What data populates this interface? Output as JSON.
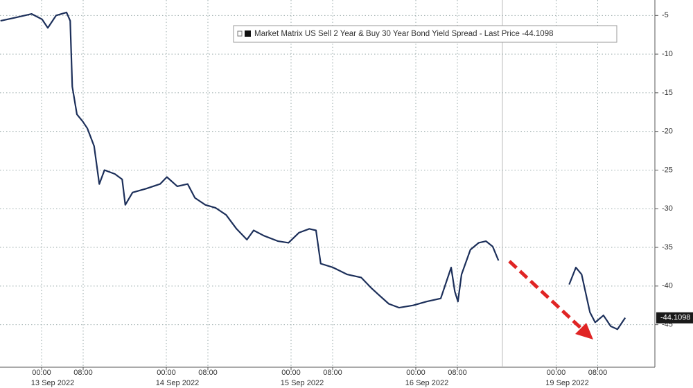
{
  "chart_data": {
    "type": "line",
    "series": [
      {
        "name": "Market Matrix US Sell 2 Year & Buy 30 Year Bond Yield Spread - Last Price -44.1098",
        "color": "#1c2f5a",
        "x": [
          -7.9,
          -5.2,
          -1.9,
          0.1,
          1.2,
          2.8,
          4.8,
          5.5,
          5.9,
          6.8,
          7.9,
          8.8,
          10.1,
          11.1,
          12.1,
          14.1,
          15.5,
          16.1,
          17.5,
          20.1,
          22.8,
          24.1,
          26.1,
          28.1,
          29.5,
          31.5,
          33.5,
          35.5,
          37.5,
          39.5,
          40.8,
          42.8,
          45.5,
          47.5,
          49.5,
          51.5,
          52.8,
          53.7,
          56.1,
          58.8,
          61.5,
          63.5,
          64.8,
          66.8,
          68.8,
          71.5,
          74.1,
          76.8,
          78.8,
          79.5,
          80.1,
          80.8,
          82.5,
          84.1,
          85.5,
          86.8,
          87.9,
          95,
          101.5,
          102.8,
          103.9,
          105.5,
          106.5,
          108.1,
          109.5,
          110.8,
          112.3
        ],
        "values": [
          -5.7,
          -5.3,
          -4.8,
          -5.5,
          -6.6,
          -5,
          -4.6,
          -5.7,
          -14.2,
          -17.8,
          -18.7,
          -19.6,
          -21.9,
          -26.8,
          -25,
          -25.5,
          -26.2,
          -29.5,
          -27.9,
          -27.4,
          -26.8,
          -25.9,
          -27.1,
          -26.8,
          -28.6,
          -29.5,
          -29.9,
          -30.8,
          -32.6,
          -34,
          -32.8,
          -33.5,
          -34.2,
          -34.4,
          -33.1,
          -32.6,
          -32.8,
          -37.1,
          -37.6,
          -38.5,
          -38.9,
          -40.3,
          -41.1,
          -42.3,
          -42.8,
          -42.5,
          -42,
          -41.6,
          -37.6,
          -40.7,
          -42,
          -38.5,
          -35.3,
          -34.4,
          -34.2,
          -34.9,
          -36.7,
          null,
          -39.8,
          -37.6,
          -38.5,
          -43.4,
          -44.7,
          -43.8,
          -45.2,
          -45.6,
          -44.1
        ]
      }
    ],
    "last_price": {
      "value": -44.1098,
      "label": "-44.1098"
    },
    "xlim": [
      -8,
      118
    ],
    "xticks": [
      {
        "value": 0,
        "label": "00:00"
      },
      {
        "value": 8,
        "label": "08:00"
      },
      {
        "value": 24,
        "label": "00:00"
      },
      {
        "value": 32,
        "label": "08:00"
      },
      {
        "value": 48,
        "label": "00:00"
      },
      {
        "value": 56,
        "label": "08:00"
      },
      {
        "value": 72,
        "label": "00:00"
      },
      {
        "value": 80,
        "label": "08:00"
      },
      {
        "value": 99,
        "label": "00:00"
      },
      {
        "value": 107,
        "label": "08:00"
      }
    ],
    "date_ticks": [
      {
        "value": 0,
        "label": "13 Sep 2022"
      },
      {
        "value": 24,
        "label": "14 Sep 2022"
      },
      {
        "value": 48,
        "label": "15 Sep 2022"
      },
      {
        "value": 72,
        "label": "16 Sep 2022"
      },
      {
        "value": 99,
        "label": "19 Sep 2022"
      }
    ],
    "ylim": [
      -50.5,
      -3
    ],
    "yticks": [
      -5,
      -10,
      -15,
      -20,
      -25,
      -30,
      -35,
      -40,
      -45
    ],
    "grid": true
  }
}
